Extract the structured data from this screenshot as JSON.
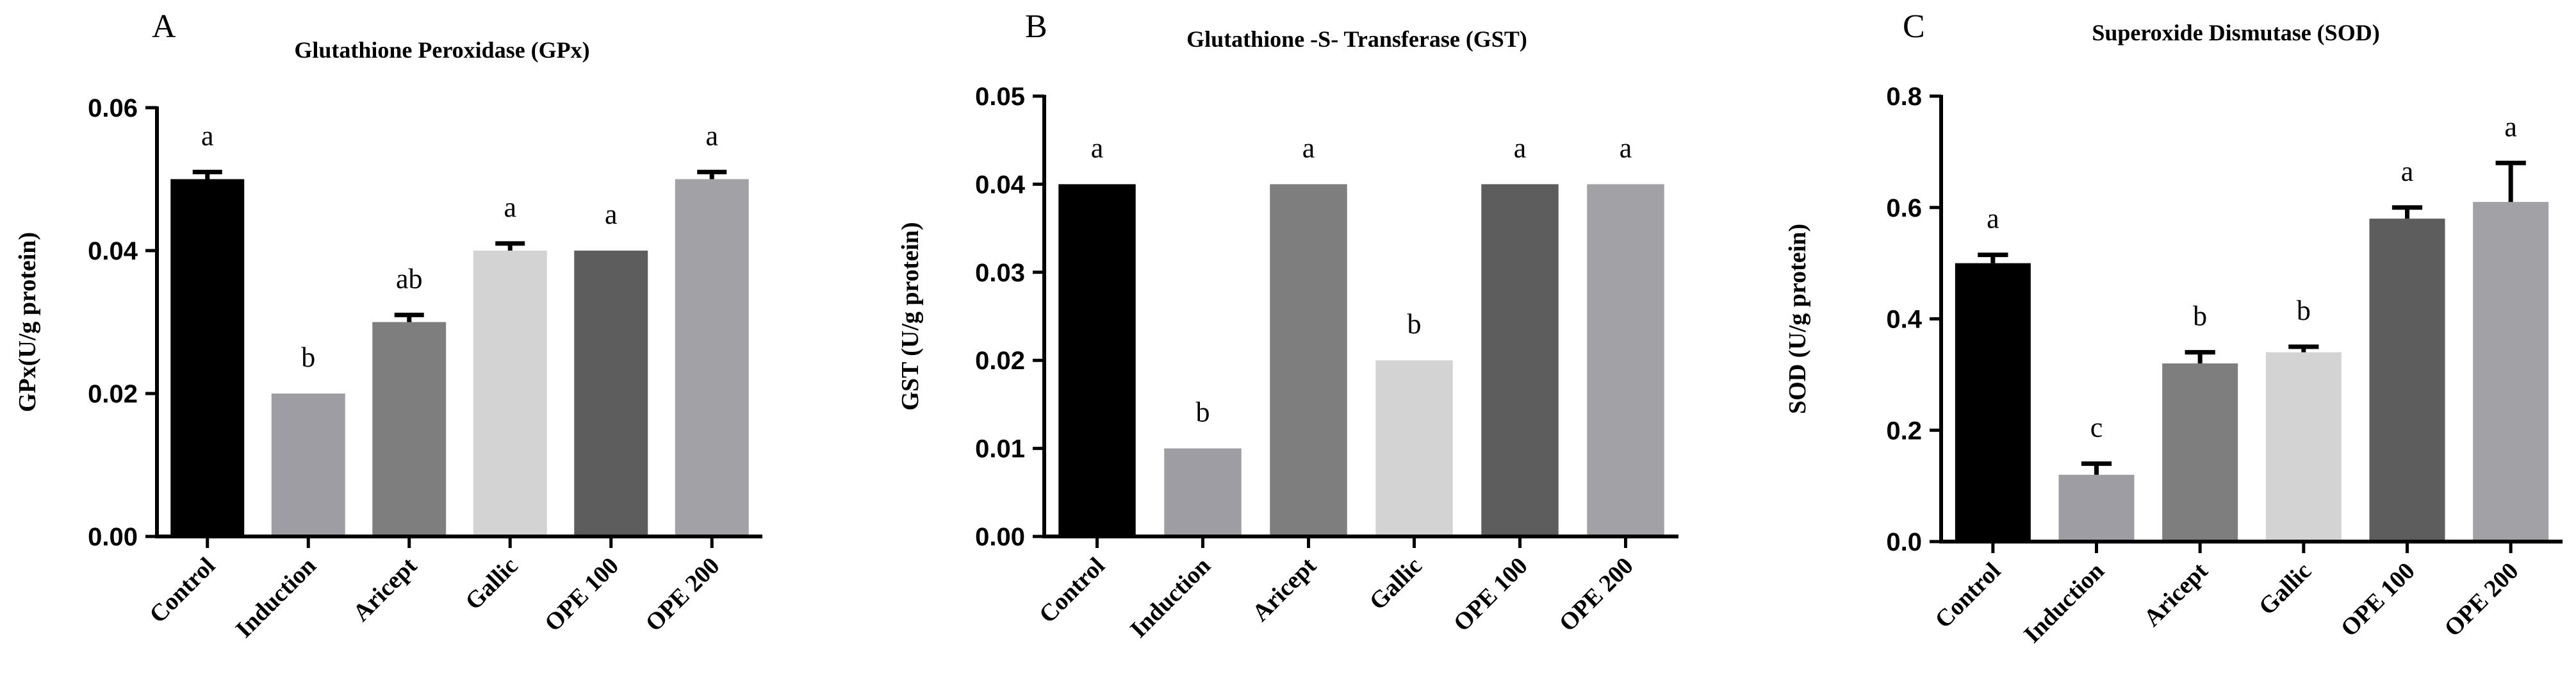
{
  "chart_data": [
    {
      "type": "bar",
      "panel_label": "A",
      "title": "Glutathione Peroxidase (GPx)",
      "ylabel": "GPx(U/g protein)",
      "xlabel": "",
      "categories": [
        "Control",
        "Induction",
        "Aricept",
        "Gallic",
        "OPE 100",
        "OPE 200"
      ],
      "values": [
        0.05,
        0.02,
        0.03,
        0.04,
        0.04,
        0.05
      ],
      "errors": [
        0.001,
        0,
        0.001,
        0.001,
        0,
        0.001
      ],
      "significance": [
        "a",
        "b",
        "ab",
        "a",
        "a",
        "a"
      ],
      "colors": [
        "#000000",
        "#9d9da3",
        "#7e7e7e",
        "#d3d3d3",
        "#5d5d5d",
        "#a1a1a6"
      ],
      "ylim": [
        0,
        0.06
      ],
      "yticks": [
        "0.00",
        "0.02",
        "0.04",
        "0.06"
      ],
      "grid": false
    },
    {
      "type": "bar",
      "panel_label": "B",
      "title": "Glutathione -S- Transferase (GST)",
      "ylabel": "GST (U/g protein)",
      "xlabel": "",
      "categories": [
        "Control",
        "Induction",
        "Aricept",
        "Gallic",
        "OPE 100",
        "OPE 200"
      ],
      "values": [
        0.04,
        0.01,
        0.04,
        0.02,
        0.04,
        0.04
      ],
      "errors": [
        0,
        0,
        0,
        0,
        0,
        0
      ],
      "significance": [
        "a",
        "b",
        "a",
        "b",
        "a",
        "a"
      ],
      "colors": [
        "#000000",
        "#9d9da3",
        "#7e7e7e",
        "#d3d3d3",
        "#5d5d5d",
        "#a1a1a6"
      ],
      "ylim": [
        0,
        0.05
      ],
      "yticks": [
        "0.00",
        "0.01",
        "0.02",
        "0.03",
        "0.04",
        "0.05"
      ],
      "grid": false
    },
    {
      "type": "bar",
      "panel_label": "C",
      "title": "Superoxide Dismutase (SOD)",
      "ylabel": "SOD (U/g protein)",
      "xlabel": "",
      "categories": [
        "Control",
        "Induction",
        "Aricept",
        "Gallic",
        "OPE 100",
        "OPE 200"
      ],
      "values": [
        0.5,
        0.12,
        0.32,
        0.34,
        0.58,
        0.61
      ],
      "errors": [
        0.015,
        0.02,
        0.02,
        0.01,
        0.02,
        0.07
      ],
      "significance": [
        "a",
        "c",
        "b",
        "b",
        "a",
        "a"
      ],
      "colors": [
        "#000000",
        "#9d9da3",
        "#7e7e7e",
        "#d3d3d3",
        "#5d5d5d",
        "#a1a1a6"
      ],
      "ylim": [
        0,
        0.8
      ],
      "yticks": [
        "0.0",
        "0.2",
        "0.4",
        "0.6",
        "0.8"
      ],
      "grid": false
    }
  ]
}
